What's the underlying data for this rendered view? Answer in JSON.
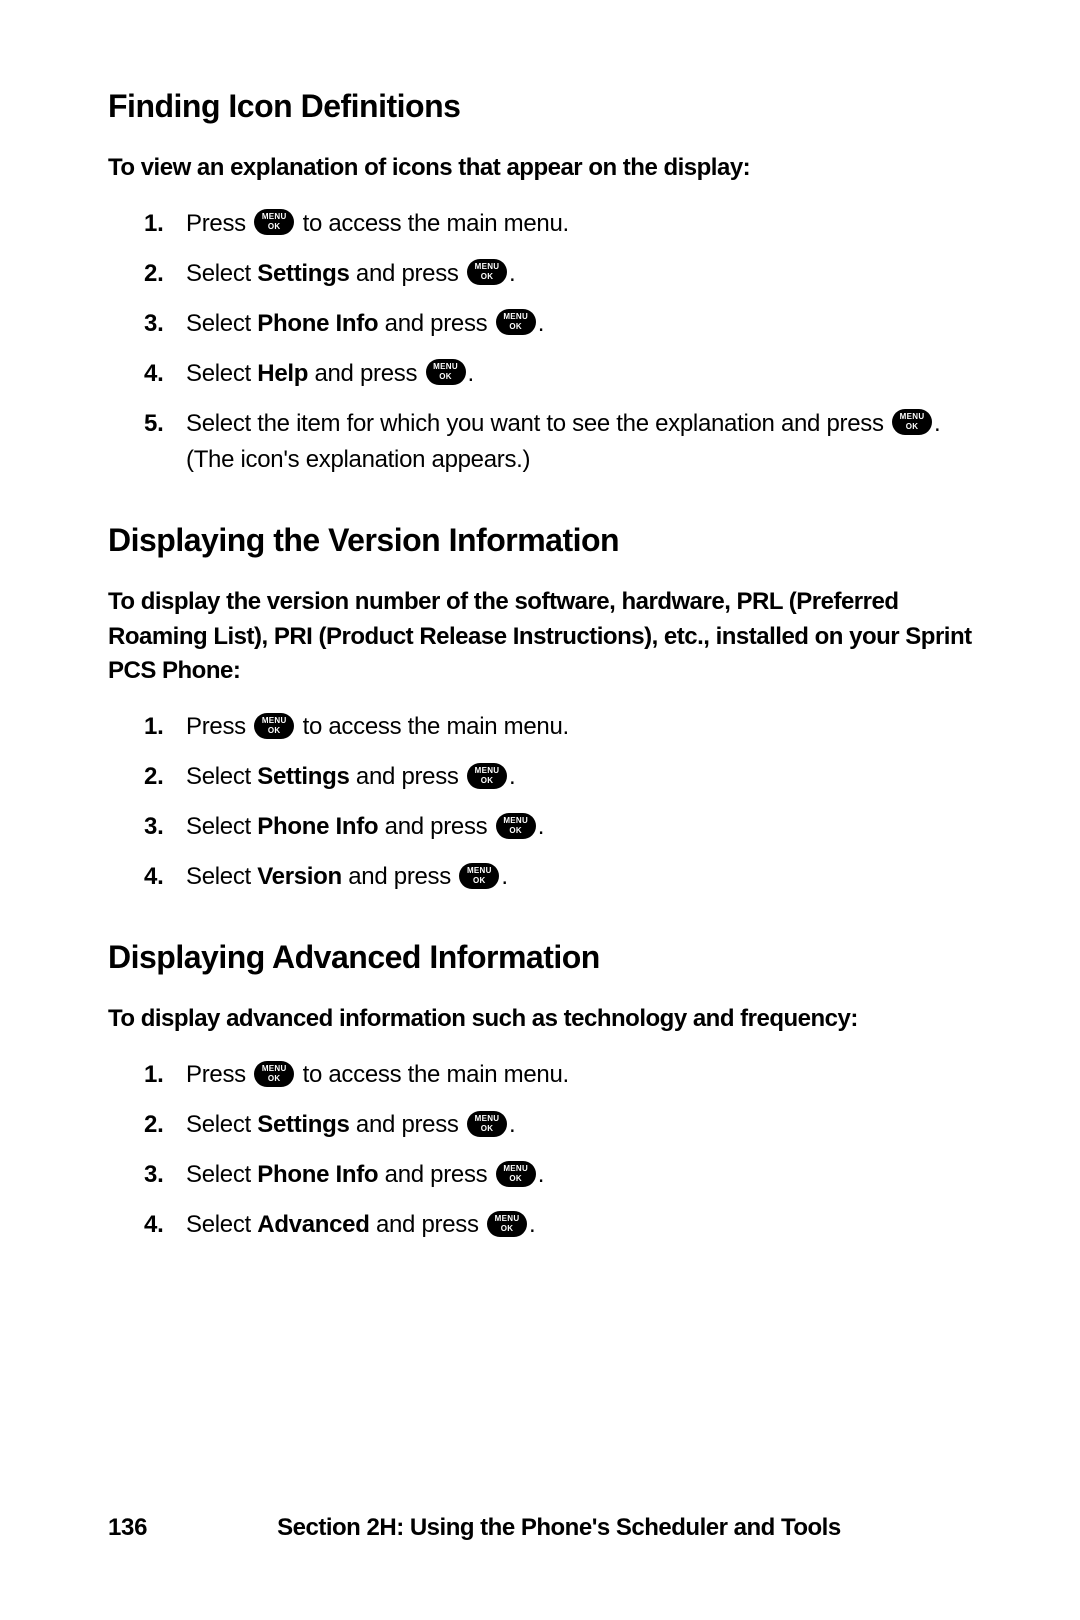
{
  "sections": [
    {
      "heading": "Finding Icon Definitions",
      "intro": "To view an explanation of icons that appear on the display:",
      "steps": [
        {
          "parts": [
            {
              "t": "Press "
            },
            {
              "icon": true
            },
            {
              "t": " to access the main menu."
            }
          ]
        },
        {
          "parts": [
            {
              "t": "Select "
            },
            {
              "t": "Settings",
              "b": true
            },
            {
              "t": " and press "
            },
            {
              "icon": true
            },
            {
              "t": "."
            }
          ]
        },
        {
          "parts": [
            {
              "t": "Select "
            },
            {
              "t": "Phone Info",
              "b": true
            },
            {
              "t": " and press "
            },
            {
              "icon": true
            },
            {
              "t": "."
            }
          ]
        },
        {
          "parts": [
            {
              "t": "Select "
            },
            {
              "t": "Help",
              "b": true
            },
            {
              "t": " and press "
            },
            {
              "icon": true
            },
            {
              "t": "."
            }
          ]
        },
        {
          "parts": [
            {
              "t": "Select the item for which you want to see the explanation and press "
            },
            {
              "icon": true
            },
            {
              "t": ". (The icon's explanation appears.)"
            }
          ]
        }
      ]
    },
    {
      "heading": "Displaying the Version Information",
      "intro": "To display the version number of the software, hardware, PRL (Preferred Roaming List), PRI (Product Release Instructions), etc., installed on your Sprint PCS Phone:",
      "steps": [
        {
          "parts": [
            {
              "t": "Press "
            },
            {
              "icon": true
            },
            {
              "t": " to access the main menu."
            }
          ]
        },
        {
          "parts": [
            {
              "t": "Select "
            },
            {
              "t": "Settings",
              "b": true
            },
            {
              "t": " and press "
            },
            {
              "icon": true
            },
            {
              "t": "."
            }
          ]
        },
        {
          "parts": [
            {
              "t": "Select "
            },
            {
              "t": "Phone Info",
              "b": true
            },
            {
              "t": " and press "
            },
            {
              "icon": true
            },
            {
              "t": "."
            }
          ]
        },
        {
          "parts": [
            {
              "t": "Select "
            },
            {
              "t": "Version",
              "b": true
            },
            {
              "t": " and press "
            },
            {
              "icon": true
            },
            {
              "t": "."
            }
          ]
        }
      ]
    },
    {
      "heading": "Displaying Advanced Information",
      "intro": "To display advanced information such as technology and frequency:",
      "steps": [
        {
          "parts": [
            {
              "t": "Press "
            },
            {
              "icon": true
            },
            {
              "t": " to access the main menu."
            }
          ]
        },
        {
          "parts": [
            {
              "t": "Select "
            },
            {
              "t": "Settings",
              "b": true
            },
            {
              "t": " and press "
            },
            {
              "icon": true
            },
            {
              "t": "."
            }
          ]
        },
        {
          "parts": [
            {
              "t": "Select "
            },
            {
              "t": "Phone Info",
              "b": true
            },
            {
              "t": " and press "
            },
            {
              "icon": true
            },
            {
              "t": "."
            }
          ]
        },
        {
          "parts": [
            {
              "t": "Select "
            },
            {
              "t": "Advanced",
              "b": true
            },
            {
              "t": " and press "
            },
            {
              "icon": true
            },
            {
              "t": "."
            }
          ]
        }
      ]
    }
  ],
  "footer": {
    "page": "136",
    "title": "Section 2H: Using the Phone's Scheduler and Tools"
  }
}
